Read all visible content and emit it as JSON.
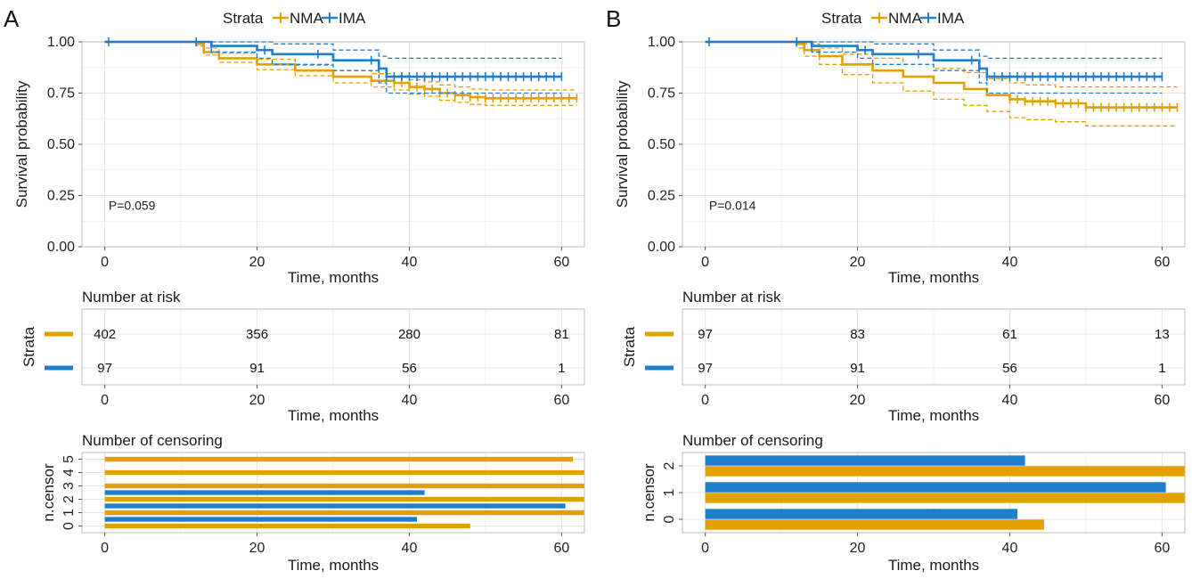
{
  "colors": {
    "NMA": "#E1A100",
    "IMA": "#1F7FCC"
  },
  "legend": {
    "title": "Strata",
    "items": [
      "NMA",
      "IMA"
    ]
  },
  "chart_data": [
    {
      "panel_label": "A",
      "type": "line",
      "subtype": "kaplan-meier",
      "title": "",
      "legend": {
        "title": "Strata",
        "items": [
          "NMA",
          "IMA"
        ],
        "placement": "top"
      },
      "xlabel": "Time, months",
      "ylabel": "Survival probability",
      "xlim": [
        -3,
        63
      ],
      "ylim": [
        0,
        1
      ],
      "xticks": [
        0,
        20,
        40,
        60
      ],
      "yticks": [
        "0.00",
        "0.25",
        "0.50",
        "0.75",
        "1.00"
      ],
      "pvalue": "P=0.059",
      "series": [
        {
          "name": "NMA",
          "x": [
            0,
            12,
            13,
            15,
            20,
            25,
            30,
            35,
            38,
            40,
            42,
            44,
            46,
            48,
            50,
            55,
            62
          ],
          "y": [
            1,
            0.99,
            0.95,
            0.92,
            0.89,
            0.86,
            0.83,
            0.81,
            0.8,
            0.78,
            0.77,
            0.75,
            0.74,
            0.73,
            0.725,
            0.725,
            0.725
          ],
          "lower": [
            1,
            0.98,
            0.935,
            0.9,
            0.865,
            0.835,
            0.8,
            0.78,
            0.765,
            0.745,
            0.735,
            0.715,
            0.705,
            0.695,
            0.69,
            0.69,
            0.69
          ],
          "upper": [
            1,
            1,
            0.97,
            0.945,
            0.915,
            0.885,
            0.86,
            0.845,
            0.835,
            0.815,
            0.805,
            0.79,
            0.78,
            0.77,
            0.765,
            0.765,
            0.765
          ],
          "censor_x": [
            38,
            39,
            40,
            41,
            42,
            43,
            44,
            45,
            46,
            47,
            48,
            49,
            50,
            51,
            52,
            53,
            54,
            55,
            56,
            57,
            58,
            59,
            60,
            61,
            62
          ]
        },
        {
          "name": "IMA",
          "x": [
            0,
            11,
            14,
            20,
            22,
            30,
            36,
            37,
            60
          ],
          "y": [
            1,
            1,
            0.98,
            0.96,
            0.94,
            0.91,
            0.87,
            0.83,
            0.83
          ],
          "lower": [
            1,
            1,
            0.95,
            0.92,
            0.89,
            0.86,
            0.8,
            0.75,
            0.75
          ],
          "upper": [
            1,
            1,
            1,
            1,
            0.99,
            0.96,
            0.93,
            0.92,
            0.92
          ],
          "censor_x": [
            0.5,
            12,
            14,
            21,
            28,
            35,
            36,
            37,
            38,
            39,
            40,
            41,
            42,
            43,
            44,
            45,
            46,
            47,
            48,
            49,
            50,
            51,
            52,
            53,
            54,
            55,
            56,
            57,
            58,
            59,
            60
          ]
        }
      ],
      "risk_table": {
        "title": "Number at risk",
        "ylabel": "Strata",
        "xlabel": "Time, months",
        "times": [
          0,
          20,
          40,
          60
        ],
        "rows": [
          {
            "name": "NMA",
            "values": [
              "402",
              "356",
              "280",
              "81"
            ]
          },
          {
            "name": "IMA",
            "values": [
              "97",
              "91",
              "56",
              "1"
            ]
          }
        ]
      },
      "censor_plot": {
        "type": "bar",
        "title": "Number of censoring",
        "ylabel": "n.censor",
        "xlabel": "Time, months",
        "yticks": [
          "0",
          "1",
          "2",
          "3",
          "4",
          "5"
        ],
        "bars": [
          {
            "group": "NMA",
            "y": 5,
            "x_end": 61.5
          },
          {
            "group": "NMA",
            "y": 4,
            "x_end": 63
          },
          {
            "group": "NMA",
            "y": 3,
            "x_end": 63
          },
          {
            "group": "IMA",
            "y": 2.5,
            "x_end": 42
          },
          {
            "group": "NMA",
            "y": 2,
            "x_end": 63
          },
          {
            "group": "IMA",
            "y": 1.5,
            "x_end": 60.5
          },
          {
            "group": "NMA",
            "y": 1,
            "x_end": 63
          },
          {
            "group": "IMA",
            "y": 0.5,
            "x_end": 41
          },
          {
            "group": "NMA",
            "y": 0,
            "x_end": 48
          }
        ]
      }
    },
    {
      "panel_label": "B",
      "type": "line",
      "subtype": "kaplan-meier",
      "title": "",
      "legend": {
        "title": "Strata",
        "items": [
          "NMA",
          "IMA"
        ],
        "placement": "top"
      },
      "xlabel": "Time, months",
      "ylabel": "Survival probability",
      "xlim": [
        -3,
        63
      ],
      "ylim": [
        0,
        1
      ],
      "xticks": [
        0,
        20,
        40,
        60
      ],
      "yticks": [
        "0.00",
        "0.25",
        "0.50",
        "0.75",
        "1.00"
      ],
      "pvalue": "P=0.014",
      "series": [
        {
          "name": "NMA",
          "x": [
            0,
            12,
            13,
            15,
            18,
            22,
            26,
            30,
            34,
            37,
            40,
            42,
            46,
            50,
            62
          ],
          "y": [
            1,
            0.99,
            0.96,
            0.93,
            0.89,
            0.86,
            0.83,
            0.8,
            0.77,
            0.74,
            0.72,
            0.71,
            0.7,
            0.68,
            0.68
          ],
          "lower": [
            1,
            0.97,
            0.93,
            0.89,
            0.84,
            0.8,
            0.76,
            0.72,
            0.69,
            0.66,
            0.63,
            0.62,
            0.61,
            0.59,
            0.59
          ],
          "upper": [
            1,
            1,
            0.99,
            0.97,
            0.94,
            0.92,
            0.89,
            0.87,
            0.85,
            0.82,
            0.8,
            0.79,
            0.78,
            0.78,
            0.78
          ],
          "censor_x": [
            40,
            41,
            42,
            43,
            44,
            45,
            46,
            47,
            48,
            49,
            50,
            51,
            52,
            53,
            54,
            55,
            56,
            57,
            58,
            59,
            60,
            61,
            62
          ]
        },
        {
          "name": "IMA",
          "x": [
            0,
            11,
            14,
            20,
            22,
            30,
            36,
            37,
            60
          ],
          "y": [
            1,
            1,
            0.98,
            0.96,
            0.94,
            0.91,
            0.87,
            0.83,
            0.83
          ],
          "lower": [
            1,
            1,
            0.95,
            0.92,
            0.89,
            0.86,
            0.8,
            0.75,
            0.75
          ],
          "upper": [
            1,
            1,
            1,
            1,
            0.99,
            0.96,
            0.93,
            0.92,
            0.92
          ],
          "censor_x": [
            0.5,
            12,
            14,
            21,
            28,
            35,
            36,
            37,
            38,
            39,
            40,
            41,
            42,
            43,
            44,
            45,
            46,
            47,
            48,
            49,
            50,
            51,
            52,
            53,
            54,
            55,
            56,
            57,
            58,
            59,
            60
          ]
        }
      ],
      "risk_table": {
        "title": "Number at risk",
        "ylabel": "Strata",
        "xlabel": "Time, months",
        "times": [
          0,
          20,
          40,
          60
        ],
        "rows": [
          {
            "name": "NMA",
            "values": [
              "97",
              "83",
              "61",
              "13"
            ]
          },
          {
            "name": "IMA",
            "values": [
              "97",
              "91",
              "56",
              "1"
            ]
          }
        ]
      },
      "censor_plot": {
        "type": "bar",
        "title": "Number of censoring",
        "ylabel": "n.censor",
        "xlabel": "Time, months",
        "yticks": [
          "0",
          "1",
          "2"
        ],
        "bars": [
          {
            "group": "IMA",
            "y": 2.2,
            "x_end": 42
          },
          {
            "group": "NMA",
            "y": 1.8,
            "x_end": 63
          },
          {
            "group": "IMA",
            "y": 1.2,
            "x_end": 60.5
          },
          {
            "group": "NMA",
            "y": 0.8,
            "x_end": 63
          },
          {
            "group": "IMA",
            "y": 0.2,
            "x_end": 41
          },
          {
            "group": "NMA",
            "y": -0.2,
            "x_end": 44.5
          }
        ]
      }
    }
  ]
}
